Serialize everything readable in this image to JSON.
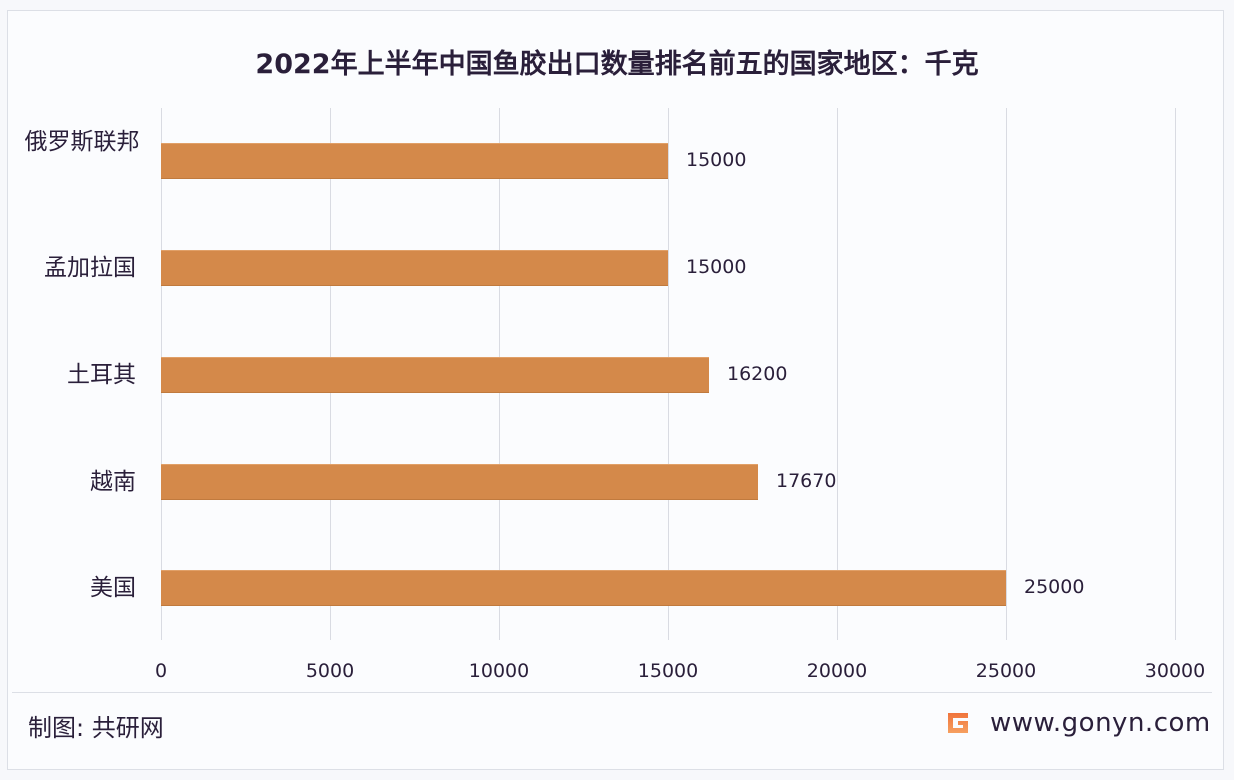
{
  "title": "2022年上半年中国鱼胶出口数量排名前五的国家地区：千克",
  "footer": {
    "source": "制图: 共研网",
    "logo_icon": "gonyn-g-logo-icon",
    "site": "www.gonyn.com"
  },
  "colors": {
    "bar": "#d4894a",
    "text": "#2a1f3a",
    "grid": "#d9dbe2",
    "background": "#fbfcfe"
  },
  "axis": {
    "ticks": [
      "0",
      "5000",
      "10000",
      "15000",
      "20000",
      "25000",
      "30000"
    ]
  },
  "bars": [
    {
      "label": "俄罗斯联邦",
      "value_text": "15000"
    },
    {
      "label": "孟加拉国",
      "value_text": "15000"
    },
    {
      "label": "土耳其",
      "value_text": "16200"
    },
    {
      "label": "越南",
      "value_text": "17670"
    },
    {
      "label": "美国",
      "value_text": "25000"
    }
  ],
  "chart_data": {
    "type": "bar",
    "orientation": "horizontal",
    "title": "2022年上半年中国鱼胶出口数量排名前五的国家地区：千克",
    "categories": [
      "俄罗斯联邦",
      "孟加拉国",
      "土耳其",
      "越南",
      "美国"
    ],
    "values": [
      15000,
      15000,
      16200,
      17670,
      25000
    ],
    "xlabel": "",
    "ylabel": "",
    "unit": "千克",
    "xlim": [
      0,
      30000
    ],
    "xticks": [
      0,
      5000,
      10000,
      15000,
      20000,
      25000,
      30000
    ],
    "grid": "vertical",
    "legend": "none",
    "data_labels": true
  }
}
